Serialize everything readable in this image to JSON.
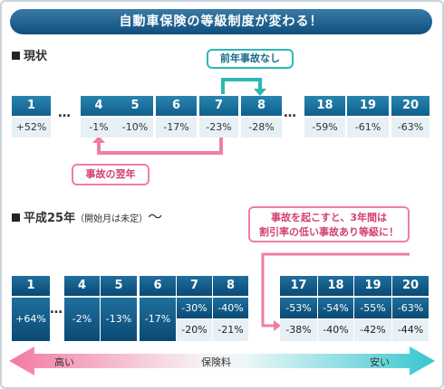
{
  "title": "自動車保険の等級制度が変わる！",
  "current": {
    "heading": "現状",
    "headers": [
      "1",
      "4",
      "5",
      "6",
      "7",
      "8",
      "18",
      "19",
      "20"
    ],
    "values": [
      "+52%",
      "-1%",
      "-10%",
      "-17%",
      "-23%",
      "-28%",
      "-59%",
      "-61%",
      "-63%"
    ],
    "ellipsis": "…",
    "callout_teal": "前年事故なし",
    "callout_pink": "事故の翌年"
  },
  "h25": {
    "heading": "平成25年",
    "note": "（開始月は未定）",
    "tilde": "〜",
    "headers": [
      "1",
      "4",
      "5",
      "6",
      "7",
      "8",
      "17",
      "18",
      "19",
      "20"
    ],
    "values": [
      "+64%",
      "-2%",
      "-13%",
      "-17%",
      "-30%",
      "-40%",
      "-53%",
      "-54%",
      "-55%",
      "-63%"
    ],
    "accident_values": [
      "-20%",
      "-21%",
      "-38%",
      "-40%",
      "-42%",
      "-44%"
    ],
    "ellipsis": "…",
    "callout": [
      "事故を起こすと、3年間は",
      "割引率の低い事故あり等級に！"
    ]
  },
  "scale": {
    "high": "高い",
    "mid": "保険料",
    "low": "安い"
  },
  "colors": {
    "teal": "#2cb7b5",
    "pink": "#ef7fa1",
    "navy": "#0f5f8c"
  }
}
